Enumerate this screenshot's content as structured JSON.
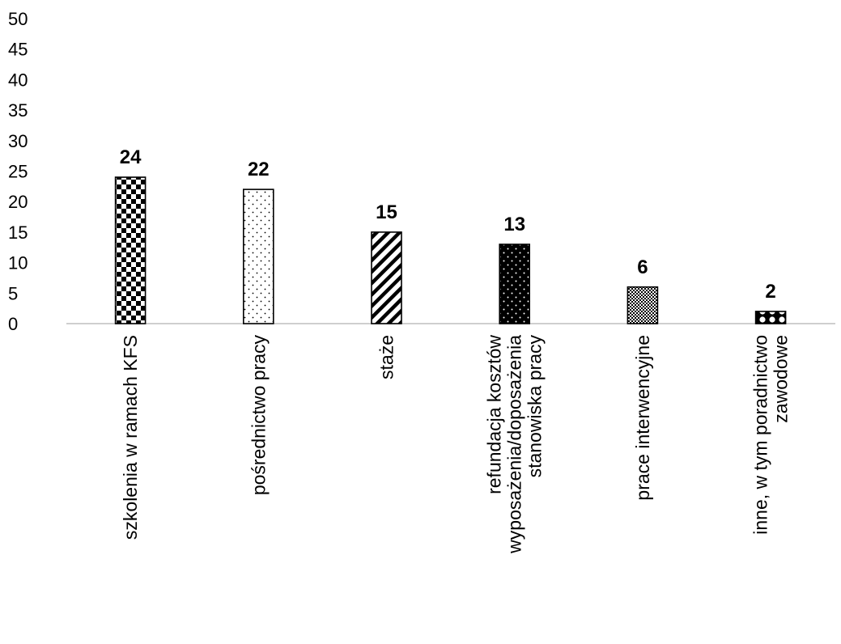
{
  "chart_data": {
    "type": "bar",
    "categories": [
      [
        "szkolenia w ramach KFS"
      ],
      [
        "pośrednictwo pracy"
      ],
      [
        "staże"
      ],
      [
        "refundacja kosztów",
        "wyposażenia/doposażenia",
        "stanowiska pracy"
      ],
      [
        "prace interwencyjne"
      ],
      [
        "inne, w tym poradnictwo",
        "zawodowe"
      ]
    ],
    "values": [
      24,
      22,
      15,
      13,
      6,
      2
    ],
    "data_labels": [
      "24",
      "22",
      "15",
      "13",
      "6",
      "2"
    ],
    "y_ticks": [
      "0",
      "5",
      "10",
      "15",
      "20",
      "25",
      "30",
      "35",
      "40",
      "45",
      "50"
    ],
    "ylim": [
      0,
      50
    ],
    "title": "",
    "xlabel": "",
    "ylabel": "",
    "grid": false,
    "legend": "none",
    "bar_patterns": [
      "checkerboard",
      "sparse-dots",
      "diagonal-stripes",
      "white-dots-on-black",
      "fine-crosshatch",
      "large-dots"
    ],
    "colors": {
      "ink": "#000000",
      "background": "#ffffff",
      "axis": "#bfbfbf"
    }
  }
}
